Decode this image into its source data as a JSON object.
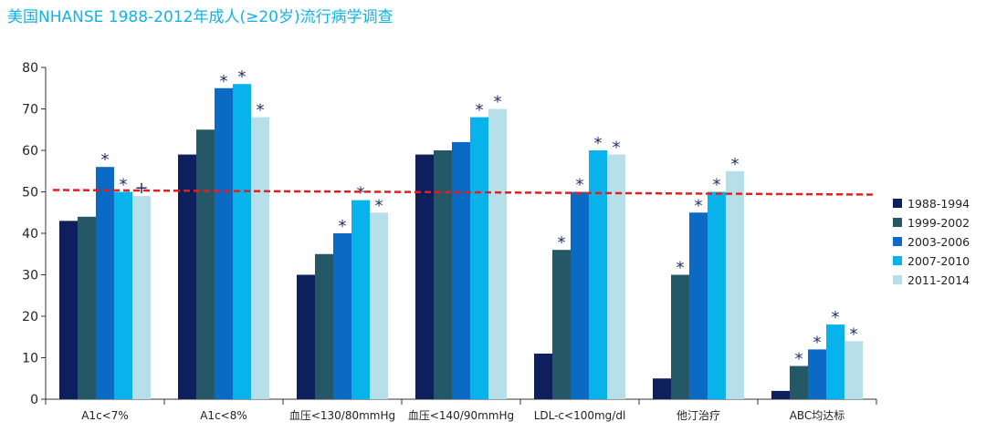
{
  "title": "美国NHANSE 1988-2012年成人(≥20岁)流行病学调查",
  "chart_data": {
    "type": "bar",
    "title": "美国NHANSE 1988-2012年成人(≥20岁)流行病学调查",
    "categories": [
      "A1c<7%",
      "A1c<8%",
      "血压<130/80mmHg",
      "血压<140/90mmHg",
      "LDL-c<100mg/dl",
      "他汀治疗",
      "ABC均达标"
    ],
    "yticks": [
      "0",
      "10",
      "20",
      "30",
      "40",
      "50",
      "60",
      "70",
      "80"
    ],
    "ylim": [
      0,
      80
    ],
    "reference_line": 50,
    "legend_position": "right",
    "series": [
      {
        "name": "1988-1994",
        "color": "#0d1f5c",
        "values": [
          43,
          59,
          30,
          59,
          11,
          5,
          2
        ],
        "markers": [
          "",
          "",
          "",
          "",
          "",
          "",
          ""
        ]
      },
      {
        "name": "1999-2002",
        "color": "#245866",
        "values": [
          44,
          65,
          35,
          60,
          36,
          30,
          8
        ],
        "markers": [
          "",
          "",
          "",
          "",
          "*",
          "*",
          "*"
        ]
      },
      {
        "name": "2003-2006",
        "color": "#0b6bc4",
        "values": [
          56,
          75,
          40,
          62,
          50,
          45,
          12
        ],
        "markers": [
          "*",
          "*",
          "*",
          "",
          "*",
          "*",
          "*"
        ]
      },
      {
        "name": "2007-2010",
        "color": "#08b3ec",
        "values": [
          50,
          76,
          48,
          68,
          60,
          50,
          18
        ],
        "markers": [
          "*",
          "*",
          "*",
          "*",
          "*",
          "*",
          "*"
        ]
      },
      {
        "name": "2011-2014",
        "color": "#b7dfe9",
        "values": [
          49,
          68,
          45,
          70,
          59,
          55,
          14
        ],
        "markers": [
          "+",
          "*",
          "*",
          "*",
          "*",
          "*",
          "*"
        ]
      }
    ]
  }
}
